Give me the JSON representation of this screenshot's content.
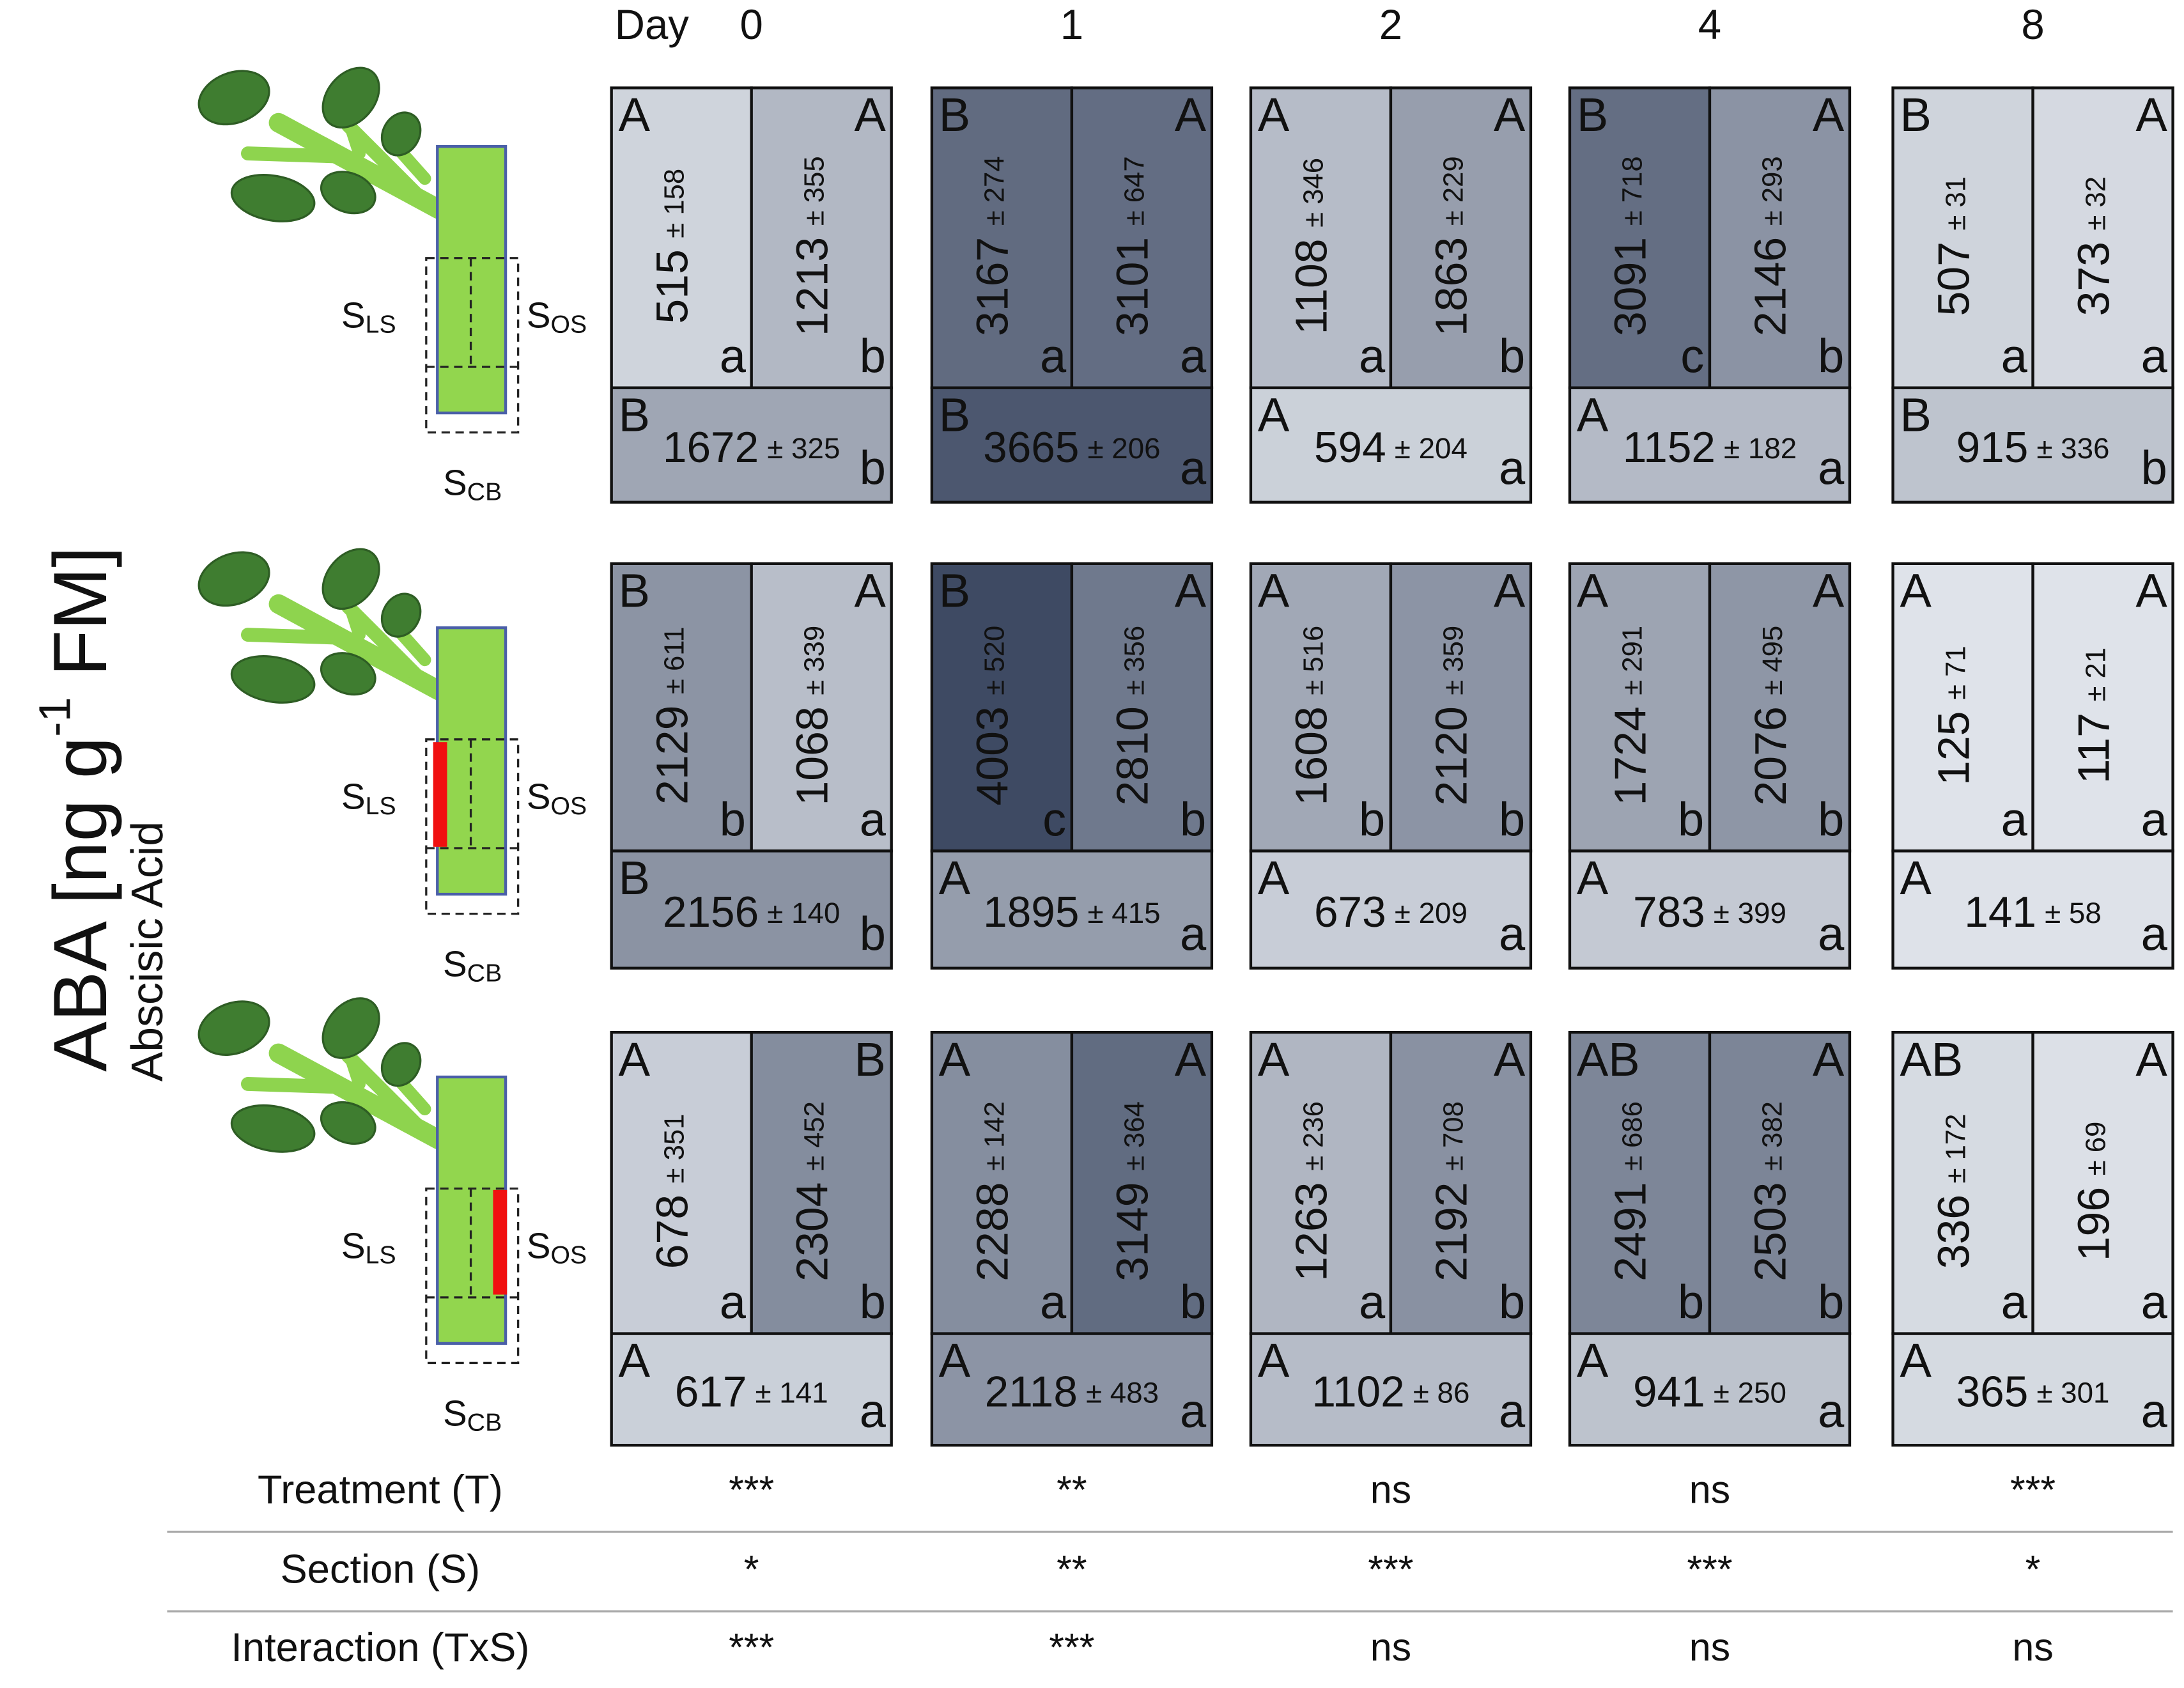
{
  "figure": {
    "y_label": {
      "main": "ABA [ng g",
      "sup": "-1",
      "end": " FM]"
    },
    "subtitle": "Abscisic Acid",
    "day_label": "Day",
    "days": [
      0,
      1,
      2,
      4,
      8
    ],
    "section_labels": {
      "ls": {
        "main": "S",
        "sub": "LS"
      },
      "os": {
        "main": "S",
        "sub": "OS"
      },
      "cb": {
        "main": "S",
        "sub": "CB"
      }
    },
    "rows": [
      {
        "cells": [
          {
            "ls": {
              "upper": "A",
              "value": 515,
              "sd": "± 158",
              "lower": "a"
            },
            "os": {
              "upper": "A",
              "value": 1213,
              "sd": "± 355",
              "lower": "b"
            },
            "cb": {
              "upper": "B",
              "value": 1672,
              "sd": "± 325",
              "lower": "b"
            }
          },
          {
            "ls": {
              "upper": "B",
              "value": 3167,
              "sd": "± 274",
              "lower": "a"
            },
            "os": {
              "upper": "A",
              "value": 3101,
              "sd": "± 647",
              "lower": "a"
            },
            "cb": {
              "upper": "B",
              "value": 3665,
              "sd": "± 206",
              "lower": "a"
            }
          },
          {
            "ls": {
              "upper": "A",
              "value": 1108,
              "sd": "± 346",
              "lower": "a"
            },
            "os": {
              "upper": "A",
              "value": 1863,
              "sd": "± 229",
              "lower": "b"
            },
            "cb": {
              "upper": "A",
              "value": 594,
              "sd": "± 204",
              "lower": "a"
            }
          },
          {
            "ls": {
              "upper": "B",
              "value": 3091,
              "sd": "± 718",
              "lower": "c"
            },
            "os": {
              "upper": "A",
              "value": 2146,
              "sd": "± 293",
              "lower": "b"
            },
            "cb": {
              "upper": "A",
              "value": 1152,
              "sd": "± 182",
              "lower": "a"
            }
          },
          {
            "ls": {
              "upper": "B",
              "value": 507,
              "sd": "± 31",
              "lower": "a"
            },
            "os": {
              "upper": "A",
              "value": 373,
              "sd": "± 32",
              "lower": "a"
            },
            "cb": {
              "upper": "B",
              "value": 915,
              "sd": "± 336",
              "lower": "b"
            }
          }
        ]
      },
      {
        "cells": [
          {
            "ls": {
              "upper": "B",
              "value": 2129,
              "sd": "± 611",
              "lower": "b"
            },
            "os": {
              "upper": "A",
              "value": 1068,
              "sd": "± 339",
              "lower": "a"
            },
            "cb": {
              "upper": "B",
              "value": 2156,
              "sd": "± 140",
              "lower": "b"
            }
          },
          {
            "ls": {
              "upper": "B",
              "value": 4003,
              "sd": "± 520",
              "lower": "c"
            },
            "os": {
              "upper": "A",
              "value": 2810,
              "sd": "± 356",
              "lower": "b"
            },
            "cb": {
              "upper": "A",
              "value": 1895,
              "sd": "± 415",
              "lower": "a"
            }
          },
          {
            "ls": {
              "upper": "A",
              "value": 1608,
              "sd": "± 516",
              "lower": "b"
            },
            "os": {
              "upper": "A",
              "value": 2120,
              "sd": "± 359",
              "lower": "b"
            },
            "cb": {
              "upper": "A",
              "value": 673,
              "sd": "± 209",
              "lower": "a"
            }
          },
          {
            "ls": {
              "upper": "A",
              "value": 1724,
              "sd": "± 291",
              "lower": "b"
            },
            "os": {
              "upper": "A",
              "value": 2076,
              "sd": "± 495",
              "lower": "b"
            },
            "cb": {
              "upper": "A",
              "value": 783,
              "sd": "± 399",
              "lower": "a"
            }
          },
          {
            "ls": {
              "upper": "A",
              "value": 125,
              "sd": "± 71",
              "lower": "a"
            },
            "os": {
              "upper": "A",
              "value": 117,
              "sd": "± 21",
              "lower": "a"
            },
            "cb": {
              "upper": "A",
              "value": 141,
              "sd": "± 58",
              "lower": "a"
            }
          }
        ]
      },
      {
        "cells": [
          {
            "ls": {
              "upper": "A",
              "value": 678,
              "sd": "± 351",
              "lower": "a"
            },
            "os": {
              "upper": "B",
              "value": 2304,
              "sd": "± 452",
              "lower": "b"
            },
            "cb": {
              "upper": "A",
              "value": 617,
              "sd": "± 141",
              "lower": "a"
            }
          },
          {
            "ls": {
              "upper": "A",
              "value": 2288,
              "sd": "± 142",
              "lower": "a"
            },
            "os": {
              "upper": "A",
              "value": 3149,
              "sd": "± 364",
              "lower": "b"
            },
            "cb": {
              "upper": "A",
              "value": 2118,
              "sd": "± 483",
              "lower": "a"
            }
          },
          {
            "ls": {
              "upper": "A",
              "value": 1263,
              "sd": "± 236",
              "lower": "a"
            },
            "os": {
              "upper": "A",
              "value": 2192,
              "sd": "± 708",
              "lower": "b"
            },
            "cb": {
              "upper": "A",
              "value": 1102,
              "sd": "± 86",
              "lower": "a"
            }
          },
          {
            "ls": {
              "upper": "AB",
              "value": 2491,
              "sd": "± 686",
              "lower": "b"
            },
            "os": {
              "upper": "A",
              "value": 2503,
              "sd": "± 382",
              "lower": "b"
            },
            "cb": {
              "upper": "A",
              "value": 941,
              "sd": "± 250",
              "lower": "a"
            }
          },
          {
            "ls": {
              "upper": "AB",
              "value": 336,
              "sd": "± 172",
              "lower": "a"
            },
            "os": {
              "upper": "A",
              "value": 196,
              "sd": "± 69",
              "lower": "a"
            },
            "cb": {
              "upper": "A",
              "value": 365,
              "sd": "± 301",
              "lower": "a"
            }
          }
        ]
      }
    ],
    "stats": [
      {
        "label": "Treatment (T)",
        "values": [
          "***",
          "**",
          "ns",
          "ns",
          "***"
        ]
      },
      {
        "label": "Section (S)",
        "values": [
          "*",
          "**",
          "***",
          "***",
          "*"
        ]
      },
      {
        "label": "Interaction (TxS)",
        "values": [
          "***",
          "***",
          "ns",
          "ns",
          "ns"
        ]
      }
    ]
  }
}
